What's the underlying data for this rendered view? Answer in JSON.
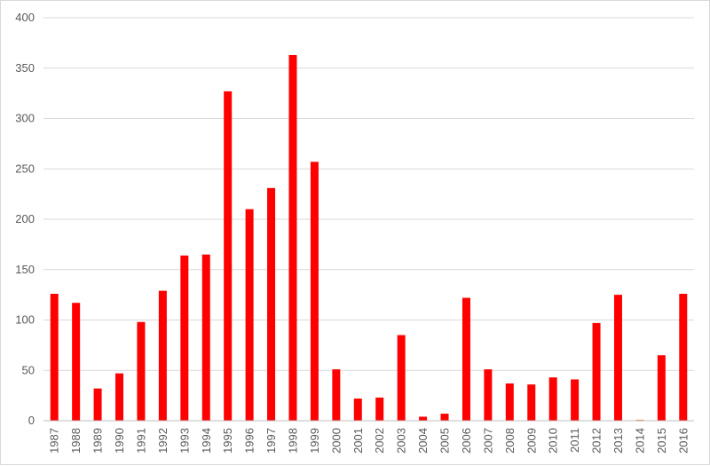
{
  "chart_data": {
    "type": "bar",
    "title": "",
    "xlabel": "",
    "ylabel": "",
    "categories": [
      "1987",
      "1988",
      "1989",
      "1990",
      "1991",
      "1992",
      "1993",
      "1994",
      "1995",
      "1996",
      "1997",
      "1998",
      "1999",
      "2000",
      "2001",
      "2002",
      "2003",
      "2004",
      "2005",
      "2006",
      "2007",
      "2008",
      "2009",
      "2010",
      "2011",
      "2012",
      "2013",
      "2014",
      "2015",
      "2016"
    ],
    "values": [
      126,
      117,
      32,
      47,
      98,
      129,
      164,
      165,
      327,
      210,
      231,
      363,
      257,
      51,
      22,
      23,
      85,
      4,
      7,
      122,
      51,
      37,
      36,
      43,
      41,
      97,
      125,
      1,
      65,
      126
    ],
    "ylim": [
      0,
      400
    ],
    "yticks": [
      0,
      50,
      100,
      150,
      200,
      250,
      300,
      350,
      400
    ],
    "grid": true,
    "legend": "none",
    "bar_color": "#ff0000",
    "bar_color_small": "#ed7d31"
  }
}
